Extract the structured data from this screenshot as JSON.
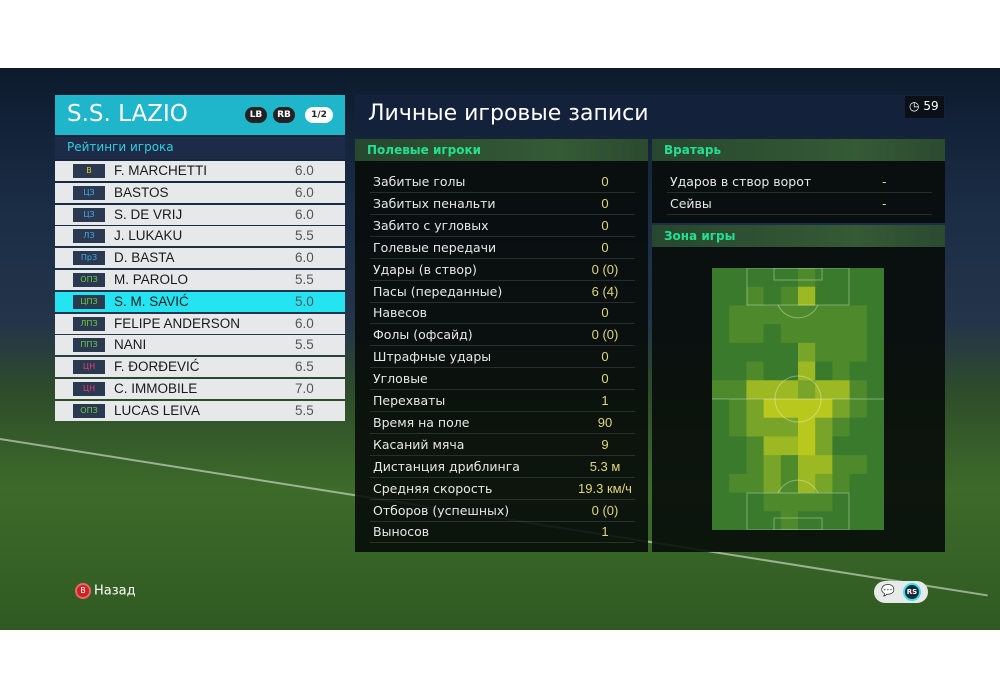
{
  "team": {
    "name": "S.S. LAZIO",
    "lb": "LB",
    "rb": "RB",
    "page": "1/2"
  },
  "ratings": {
    "title": "Рейтинги игрока",
    "players": [
      {
        "pos": "В",
        "pos_color": "#e8d020",
        "name": "F. MARCHETTI",
        "rating": "6.0"
      },
      {
        "pos": "ЦЗ",
        "pos_color": "#4aa8e8",
        "name": "BASTOS",
        "rating": "6.0"
      },
      {
        "pos": "ЦЗ",
        "pos_color": "#4aa8e8",
        "name": "S. DE VRIJ",
        "rating": "6.0"
      },
      {
        "pos": "ЛЗ",
        "pos_color": "#4aa8e8",
        "name": "J. LUKAKU",
        "rating": "5.5"
      },
      {
        "pos": "ПрЗ",
        "pos_color": "#4aa8e8",
        "name": "D. BASTA",
        "rating": "6.0"
      },
      {
        "pos": "ОПЗ",
        "pos_color": "#6cd040",
        "name": "M. PAROLO",
        "rating": "5.5"
      },
      {
        "pos": "ЦПЗ",
        "pos_color": "#6cd040",
        "name": "S. M. SAVIĆ",
        "rating": "5.0",
        "selected": true
      },
      {
        "pos": "ЛПЗ",
        "pos_color": "#6cd040",
        "name": "FELIPE ANDERSON",
        "rating": "6.0"
      },
      {
        "pos": "ППЗ",
        "pos_color": "#6cd040",
        "name": "NANI",
        "rating": "5.5"
      },
      {
        "pos": "ЦН",
        "pos_color": "#e84070",
        "name": "F. ĐORĐEVIĆ",
        "rating": "6.5"
      },
      {
        "pos": "ЦН",
        "pos_color": "#e84070",
        "name": "C. IMMOBILE",
        "rating": "7.0"
      },
      {
        "pos": "ОПЗ",
        "pos_color": "#6cd040",
        "name": "LUCAS LEIVA",
        "rating": "5.5"
      }
    ]
  },
  "header": {
    "title": "Личные игровые записи",
    "timer": "59",
    "timer_icon": "clock-icon"
  },
  "field": {
    "title": "Полевые игроки",
    "stats": [
      {
        "label": "Забитые голы",
        "value": "0"
      },
      {
        "label": "Забитых пенальти",
        "value": "0"
      },
      {
        "label": "Забито с угловых",
        "value": "0"
      },
      {
        "label": "Голевые передачи",
        "value": "0"
      },
      {
        "label": "Удары (в створ)",
        "value": "0 (0)"
      },
      {
        "label": "Пасы (переданные)",
        "value": "6 (4)"
      },
      {
        "label": "Навесов",
        "value": "0"
      },
      {
        "label": "Фолы (офсайд)",
        "value": "0 (0)"
      },
      {
        "label": "Штрафные удары",
        "value": "0"
      },
      {
        "label": "Угловые",
        "value": "0"
      },
      {
        "label": "Перехваты",
        "value": "1"
      },
      {
        "label": "Время на поле",
        "value": "90"
      },
      {
        "label": "Касаний мяча",
        "value": "9"
      },
      {
        "label": "Дистанция дриблинга",
        "value": "5.3 м"
      },
      {
        "label": "Средняя скорость",
        "value": "19.3 км/ч"
      },
      {
        "label": "Отборов (успешных)",
        "value": "0 (0)"
      },
      {
        "label": "Выносов",
        "value": "1"
      }
    ]
  },
  "goalkeeper": {
    "title": "Вратарь",
    "stats": [
      {
        "label": "Ударов в створ ворот",
        "value": "-"
      },
      {
        "label": "Сейвы",
        "value": "-"
      }
    ]
  },
  "zone": {
    "title": "Зона игры",
    "heat_colors": [
      "#2d6528",
      "#3a7a2c",
      "#4e8a2c",
      "#79a42a",
      "#9cb822",
      "#b8c81c"
    ],
    "heatmap": [
      [
        1,
        1,
        1,
        1,
        1,
        2,
        1,
        1,
        1,
        1
      ],
      [
        1,
        1,
        2,
        1,
        2,
        4,
        1,
        1,
        1,
        1
      ],
      [
        1,
        2,
        2,
        2,
        2,
        2,
        2,
        2,
        2,
        1
      ],
      [
        1,
        2,
        2,
        1,
        2,
        2,
        2,
        2,
        2,
        1
      ],
      [
        1,
        1,
        1,
        1,
        1,
        3,
        2,
        2,
        2,
        1
      ],
      [
        1,
        1,
        2,
        1,
        1,
        4,
        1,
        2,
        1,
        1
      ],
      [
        2,
        2,
        4,
        4,
        4,
        3,
        4,
        4,
        2,
        1
      ],
      [
        1,
        2,
        3,
        5,
        5,
        5,
        5,
        3,
        2,
        1
      ],
      [
        1,
        2,
        3,
        3,
        3,
        5,
        3,
        2,
        1,
        1
      ],
      [
        1,
        1,
        2,
        4,
        4,
        5,
        3,
        1,
        1,
        1
      ],
      [
        1,
        1,
        2,
        3,
        2,
        4,
        4,
        2,
        2,
        1
      ],
      [
        1,
        2,
        2,
        3,
        2,
        4,
        3,
        2,
        1,
        1
      ],
      [
        1,
        1,
        1,
        2,
        2,
        2,
        2,
        1,
        1,
        1
      ],
      [
        1,
        1,
        1,
        1,
        2,
        1,
        1,
        1,
        1,
        1
      ]
    ]
  },
  "footer": {
    "back_label": "Назад",
    "back_button": "B",
    "rs_label": "RS"
  },
  "accent": "#1fb6cc"
}
